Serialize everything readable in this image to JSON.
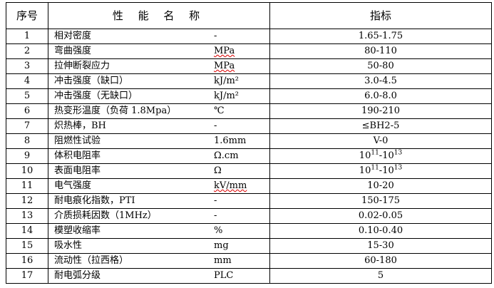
{
  "header": {
    "no": "序号",
    "name": "性 能 名 称",
    "value": "指标"
  },
  "rows": [
    {
      "no": "1",
      "name": "相对密度",
      "unit": "-",
      "value": "1.65-1.75"
    },
    {
      "no": "2",
      "name": "弯曲强度",
      "unit": "MPa",
      "value": "80-110",
      "unit_spellcheck": true
    },
    {
      "no": "3",
      "name": "拉伸断裂应力",
      "unit": "MPa",
      "value": "50-80",
      "unit_spellcheck": true
    },
    {
      "no": "4",
      "name": "冲击强度（缺口）",
      "unit": "kJ/m²",
      "value": "3.0-4.5"
    },
    {
      "no": "5",
      "name": "冲击强度（无缺口）",
      "unit": "kJ/m²",
      "value": "6.0-8.0"
    },
    {
      "no": "6",
      "name": "热变形温度（负荷 1.8Mpa）",
      "unit": "℃",
      "value": "190-210"
    },
    {
      "no": "7",
      "name": "炽热棒，BH",
      "unit": "-",
      "value": "≤BH2-5"
    },
    {
      "no": "8",
      "name": "阻燃性试验",
      "unit": "1.6mm",
      "value": "V-0"
    },
    {
      "no": "9",
      "name": "体积电阻率",
      "unit": "Ω.cm",
      "value_base1": "10",
      "value_exp1": "11",
      "value_base2": "-10",
      "value_exp2": "13"
    },
    {
      "no": "10",
      "name": "表面电阻率",
      "unit": "Ω",
      "value_base1": "10",
      "value_exp1": "11",
      "value_base2": "-10",
      "value_exp2": "13"
    },
    {
      "no": "11",
      "name": "电气强度",
      "unit": "kV/mm",
      "value": "10-20",
      "unit_spellcheck": true
    },
    {
      "no": "12",
      "name": "耐电痕化指数，PTI",
      "unit": "-",
      "value": "150-175"
    },
    {
      "no": "13",
      "name": "介质损耗因数（1MHz）",
      "unit": "-",
      "value": "0.02-0.05"
    },
    {
      "no": "14",
      "name": "模塑收缩率",
      "unit": "%",
      "value": "0.10-0.40"
    },
    {
      "no": "15",
      "name": "吸水性",
      "unit": "mg",
      "value": "15-30"
    },
    {
      "no": "16",
      "name": "流动性（拉西格）",
      "unit": "mm",
      "value": "60-180"
    },
    {
      "no": "17",
      "name": "耐电弧分级",
      "unit": "PLC",
      "value": "5"
    }
  ]
}
